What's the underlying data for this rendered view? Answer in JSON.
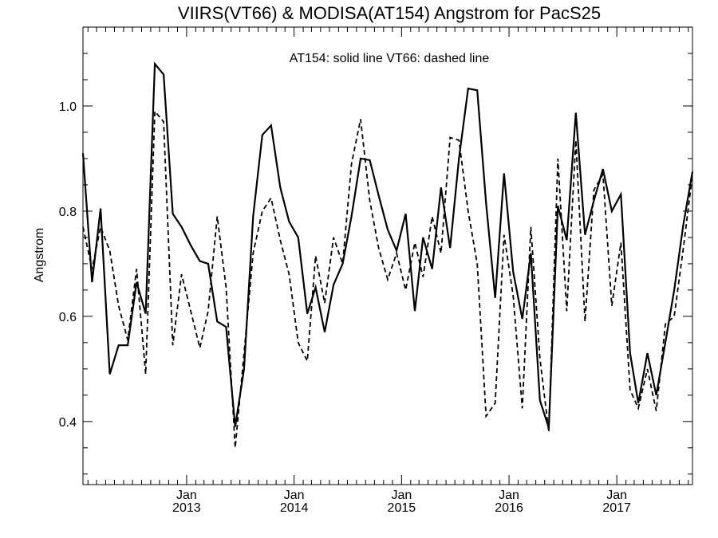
{
  "chart_data": {
    "type": "line",
    "title": "VIIRS(VT66) & MODISA(AT154)  Angstrom for PacS25",
    "xlabel": "",
    "ylabel": "Angstrom",
    "annotation": "AT154: solid line   VT66: dashed line",
    "xlim": [
      "2012-01-15",
      "2017-09-15"
    ],
    "ylim": [
      0.28,
      1.15
    ],
    "y_ticks": [
      "0.4",
      "0.6",
      "0.8",
      "1.0"
    ],
    "x_ticks": [
      {
        "month": "Jan",
        "year": "2013",
        "date": "2013-01-01"
      },
      {
        "month": "Jan",
        "year": "2014",
        "date": "2014-01-01"
      },
      {
        "month": "Jan",
        "year": "2015",
        "date": "2015-01-01"
      },
      {
        "month": "Jan",
        "year": "2016",
        "date": "2016-01-01"
      },
      {
        "month": "Jan",
        "year": "2017",
        "date": "2017-01-01"
      }
    ],
    "grid": false,
    "series": [
      {
        "name": "AT154",
        "style": "solid",
        "color": "#000000",
        "points": [
          [
            "2012-01-15",
            0.91
          ],
          [
            "2012-02-15",
            0.665
          ],
          [
            "2012-03-15",
            0.805
          ],
          [
            "2012-04-15",
            0.49
          ],
          [
            "2012-05-15",
            0.545
          ],
          [
            "2012-06-15",
            0.545
          ],
          [
            "2012-07-15",
            0.665
          ],
          [
            "2012-08-15",
            0.605
          ],
          [
            "2012-09-15",
            1.08
          ],
          [
            "2012-10-15",
            1.06
          ],
          [
            "2012-11-15",
            0.795
          ],
          [
            "2012-12-15",
            0.77
          ],
          [
            "2013-01-15",
            0.735
          ],
          [
            "2013-02-15",
            0.705
          ],
          [
            "2013-03-15",
            0.7
          ],
          [
            "2013-04-15",
            0.59
          ],
          [
            "2013-05-15",
            0.58
          ],
          [
            "2013-06-15",
            0.39
          ],
          [
            "2013-07-15",
            0.5
          ],
          [
            "2013-08-15",
            0.79
          ],
          [
            "2013-09-15",
            0.945
          ],
          [
            "2013-10-15",
            0.963
          ],
          [
            "2013-11-15",
            0.845
          ],
          [
            "2013-12-15",
            0.78
          ],
          [
            "2014-01-15",
            0.75
          ],
          [
            "2014-02-15",
            0.605
          ],
          [
            "2014-03-15",
            0.655
          ],
          [
            "2014-04-15",
            0.57
          ],
          [
            "2014-05-15",
            0.66
          ],
          [
            "2014-06-15",
            0.7
          ],
          [
            "2014-07-15",
            0.79
          ],
          [
            "2014-08-15",
            0.9
          ],
          [
            "2014-09-15",
            0.897
          ],
          [
            "2014-10-15",
            0.83
          ],
          [
            "2014-11-15",
            0.765
          ],
          [
            "2014-12-15",
            0.725
          ],
          [
            "2015-01-15",
            0.795
          ],
          [
            "2015-02-15",
            0.61
          ],
          [
            "2015-03-15",
            0.75
          ],
          [
            "2015-04-15",
            0.69
          ],
          [
            "2015-05-15",
            0.845
          ],
          [
            "2015-06-15",
            0.73
          ],
          [
            "2015-07-15",
            0.9
          ],
          [
            "2015-08-15",
            1.033
          ],
          [
            "2015-09-15",
            1.03
          ],
          [
            "2015-10-15",
            0.815
          ],
          [
            "2015-11-15",
            0.635
          ],
          [
            "2015-12-15",
            0.872
          ],
          [
            "2016-01-15",
            0.685
          ],
          [
            "2016-02-15",
            0.595
          ],
          [
            "2016-03-15",
            0.72
          ],
          [
            "2016-04-15",
            0.44
          ],
          [
            "2016-05-15",
            0.388
          ],
          [
            "2016-06-15",
            0.81
          ],
          [
            "2016-07-15",
            0.745
          ],
          [
            "2016-08-15",
            0.987
          ],
          [
            "2016-09-15",
            0.755
          ],
          [
            "2016-10-15",
            0.82
          ],
          [
            "2016-11-15",
            0.88
          ],
          [
            "2016-12-15",
            0.8
          ],
          [
            "2017-01-15",
            0.832
          ],
          [
            "2017-02-15",
            0.53
          ],
          [
            "2017-03-15",
            0.435
          ],
          [
            "2017-04-15",
            0.53
          ],
          [
            "2017-05-15",
            0.45
          ],
          [
            "2017-06-15",
            0.55
          ],
          [
            "2017-07-15",
            0.65
          ],
          [
            "2017-08-15",
            0.775
          ],
          [
            "2017-09-15",
            0.875
          ]
        ]
      },
      {
        "name": "VT66",
        "style": "dashed",
        "color": "#000000",
        "points": [
          [
            "2012-01-15",
            0.77
          ],
          [
            "2012-02-15",
            0.69
          ],
          [
            "2012-03-15",
            0.77
          ],
          [
            "2012-04-15",
            0.725
          ],
          [
            "2012-05-15",
            0.62
          ],
          [
            "2012-06-15",
            0.555
          ],
          [
            "2012-07-15",
            0.69
          ],
          [
            "2012-08-15",
            0.49
          ],
          [
            "2012-09-15",
            0.99
          ],
          [
            "2012-10-15",
            0.97
          ],
          [
            "2012-11-15",
            0.545
          ],
          [
            "2012-12-15",
            0.68
          ],
          [
            "2013-01-15",
            0.61
          ],
          [
            "2013-02-15",
            0.54
          ],
          [
            "2013-03-15",
            0.61
          ],
          [
            "2013-04-15",
            0.79
          ],
          [
            "2013-05-15",
            0.655
          ],
          [
            "2013-06-15",
            0.35
          ],
          [
            "2013-07-15",
            0.53
          ],
          [
            "2013-08-15",
            0.72
          ],
          [
            "2013-09-15",
            0.8
          ],
          [
            "2013-10-15",
            0.825
          ],
          [
            "2013-11-15",
            0.745
          ],
          [
            "2013-12-15",
            0.68
          ],
          [
            "2014-01-15",
            0.55
          ],
          [
            "2014-02-15",
            0.515
          ],
          [
            "2014-03-15",
            0.715
          ],
          [
            "2014-04-15",
            0.625
          ],
          [
            "2014-05-15",
            0.75
          ],
          [
            "2014-06-15",
            0.7
          ],
          [
            "2014-07-15",
            0.89
          ],
          [
            "2014-08-15",
            0.975
          ],
          [
            "2014-09-15",
            0.82
          ],
          [
            "2014-10-15",
            0.73
          ],
          [
            "2014-11-15",
            0.67
          ],
          [
            "2014-12-15",
            0.72
          ],
          [
            "2015-01-15",
            0.65
          ],
          [
            "2015-02-15",
            0.74
          ],
          [
            "2015-03-15",
            0.675
          ],
          [
            "2015-04-15",
            0.79
          ],
          [
            "2015-05-15",
            0.72
          ],
          [
            "2015-06-15",
            0.94
          ],
          [
            "2015-07-15",
            0.935
          ],
          [
            "2015-08-15",
            0.8
          ],
          [
            "2015-09-15",
            0.7
          ],
          [
            "2015-10-15",
            0.41
          ],
          [
            "2015-11-15",
            0.435
          ],
          [
            "2015-12-15",
            0.755
          ],
          [
            "2016-01-15",
            0.64
          ],
          [
            "2016-02-15",
            0.425
          ],
          [
            "2016-03-15",
            0.77
          ],
          [
            "2016-04-15",
            0.52
          ],
          [
            "2016-05-15",
            0.38
          ],
          [
            "2016-06-15",
            0.9
          ],
          [
            "2016-07-15",
            0.61
          ],
          [
            "2016-08-15",
            0.935
          ],
          [
            "2016-09-15",
            0.59
          ],
          [
            "2016-10-15",
            0.84
          ],
          [
            "2016-11-15",
            0.87
          ],
          [
            "2016-12-15",
            0.62
          ],
          [
            "2017-01-15",
            0.74
          ],
          [
            "2017-02-15",
            0.46
          ],
          [
            "2017-03-15",
            0.425
          ],
          [
            "2017-04-15",
            0.5
          ],
          [
            "2017-05-15",
            0.42
          ],
          [
            "2017-06-15",
            0.585
          ],
          [
            "2017-07-15",
            0.6
          ],
          [
            "2017-08-15",
            0.73
          ],
          [
            "2017-09-15",
            0.87
          ]
        ]
      }
    ]
  }
}
